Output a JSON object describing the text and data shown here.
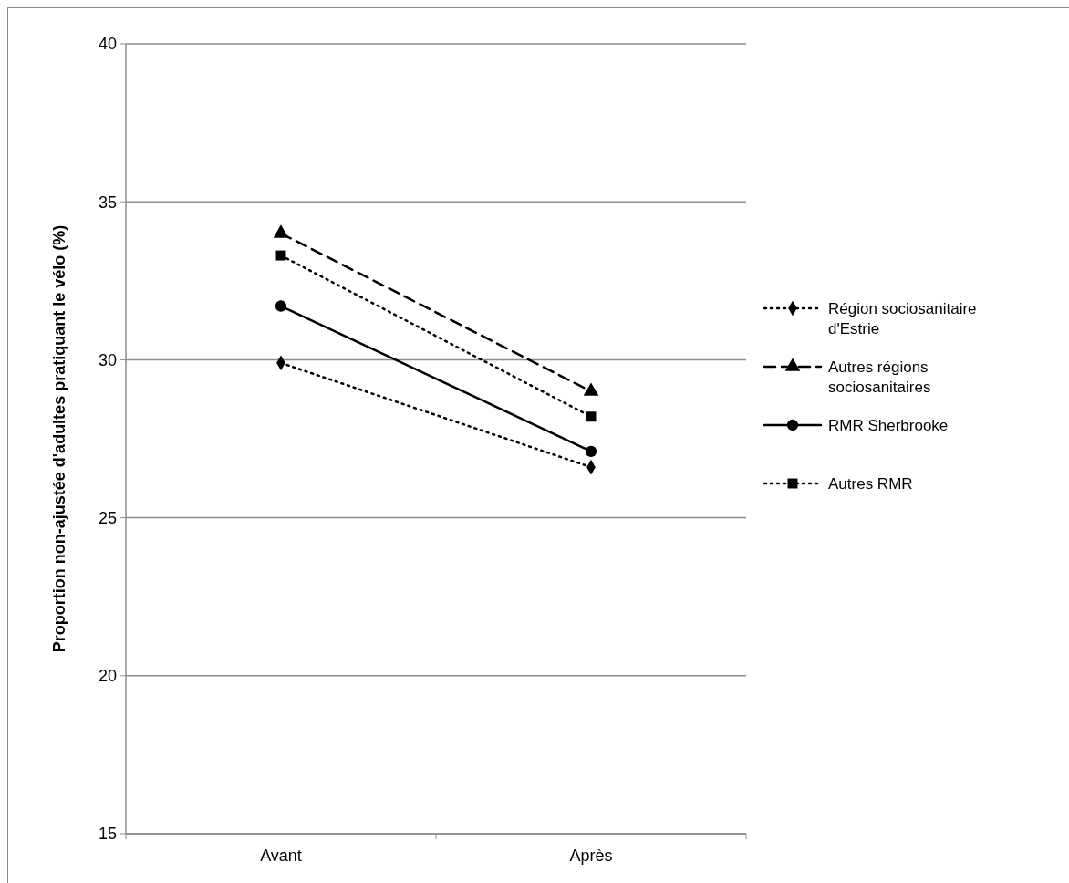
{
  "chart_data": {
    "type": "line",
    "ylabel": "Proportion non-ajustée d'adultes pratiquant le vélo (%)",
    "categories": [
      "Avant",
      "Après"
    ],
    "series": [
      {
        "name": "Région sociosanitaire d'Estrie",
        "color": "#000000",
        "marker": "diamond",
        "line_style": "dotted",
        "values": [
          29.9,
          26.6
        ]
      },
      {
        "name": "Autres régions sociosanitaires",
        "color": "#000000",
        "marker": "triangle",
        "line_style": "dashed",
        "values": [
          34.0,
          29.0
        ]
      },
      {
        "name": "RMR Sherbrooke",
        "color": "#000000",
        "marker": "circle",
        "line_style": "solid",
        "values": [
          31.7,
          27.1
        ]
      },
      {
        "name": "Autres RMR",
        "color": "#000000",
        "marker": "square",
        "line_style": "dotted",
        "values": [
          33.3,
          28.2
        ]
      }
    ],
    "ylim": [
      15,
      40
    ],
    "yticks": [
      15,
      20,
      25,
      30,
      35,
      40
    ],
    "grid": "y",
    "legend": "right"
  }
}
